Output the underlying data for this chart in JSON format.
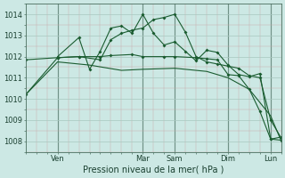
{
  "xlabel": "Pression niveau de la mer( hPa )",
  "bg_color": "#cce8e4",
  "line_color": "#1a5c30",
  "ylim": [
    1007.5,
    1014.5
  ],
  "yticks": [
    1008,
    1009,
    1010,
    1011,
    1012,
    1013,
    1014
  ],
  "xlim": [
    0,
    24
  ],
  "vline_positions": [
    3,
    11,
    14,
    19,
    23
  ],
  "xtick_positions": [
    3,
    11,
    14,
    19,
    23
  ],
  "xtick_labels": [
    "Ven",
    "Mar",
    "Sam",
    "Dim",
    "Lun"
  ],
  "s1x": [
    0,
    3,
    5,
    7,
    8,
    9,
    10,
    11,
    12,
    13,
    14,
    15,
    16,
    17,
    18,
    19,
    20,
    21,
    22,
    23,
    24
  ],
  "s1y": [
    1010.2,
    1011.95,
    1012.0,
    1011.85,
    1012.8,
    1013.1,
    1013.25,
    1013.35,
    1013.75,
    1013.85,
    1014.0,
    1013.15,
    1012.0,
    1011.75,
    1011.65,
    1011.55,
    1011.45,
    1011.1,
    1011.0,
    1009.0,
    1008.15
  ],
  "s2x": [
    3,
    5,
    6,
    7,
    8,
    9,
    10,
    11,
    12,
    13,
    14,
    15,
    16,
    17,
    18,
    19,
    20,
    21,
    22,
    23,
    24
  ],
  "s2y": [
    1012.0,
    1012.9,
    1011.4,
    1012.25,
    1013.35,
    1013.45,
    1013.1,
    1014.0,
    1013.1,
    1012.55,
    1012.7,
    1012.25,
    1011.8,
    1012.3,
    1012.2,
    1011.6,
    1011.15,
    1011.05,
    1011.2,
    1008.1,
    1008.2
  ],
  "s3x": [
    0,
    3,
    5,
    7,
    8,
    10,
    11,
    13,
    14,
    16,
    17,
    18,
    19,
    20,
    21,
    22,
    23,
    24
  ],
  "s3y": [
    1011.85,
    1011.95,
    1012.0,
    1012.0,
    1012.05,
    1012.1,
    1012.0,
    1012.0,
    1012.0,
    1011.95,
    1011.9,
    1011.85,
    1011.15,
    1011.1,
    1010.45,
    1009.4,
    1008.1,
    1008.05
  ],
  "s4x": [
    0,
    3,
    6,
    9,
    11,
    14,
    17,
    19,
    21,
    23,
    24
  ],
  "s4y": [
    1010.2,
    1011.75,
    1011.6,
    1011.35,
    1011.4,
    1011.45,
    1011.3,
    1011.0,
    1010.45,
    1009.2,
    1008.0
  ]
}
